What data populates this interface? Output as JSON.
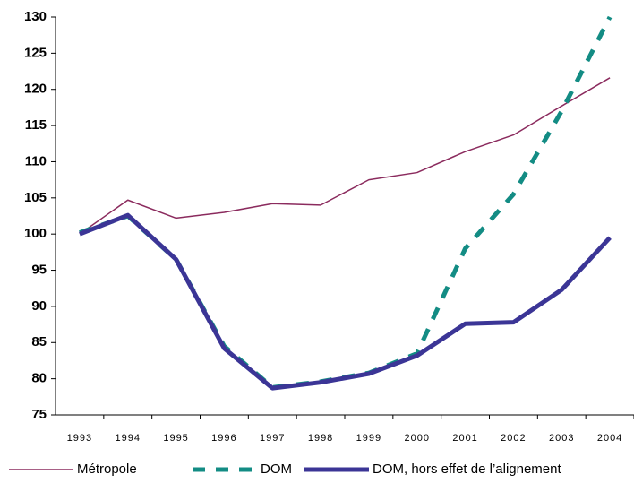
{
  "chart_data": {
    "type": "line",
    "categories": [
      "1993",
      "1994",
      "1995",
      "1996",
      "1997",
      "1998",
      "1999",
      "2000",
      "2001",
      "2002",
      "2003",
      "2004"
    ],
    "series": [
      {
        "name": "Métropole",
        "color": "#8b2b5e",
        "values": [
          100,
          104.7,
          102.2,
          103,
          104.2,
          104,
          107.5,
          108.5,
          111.4,
          113.7,
          117.7,
          121.6
        ]
      },
      {
        "name": "DOM",
        "color": "#138c84",
        "values": [
          100.2,
          102.5,
          96.5,
          84.5,
          78.8,
          79.6,
          80.8,
          83.5,
          98,
          105.5,
          117,
          130
        ]
      },
      {
        "name": "DOM, hors effet de l’alignement",
        "color": "#3b3596",
        "values": [
          100,
          102.6,
          96.5,
          84.2,
          78.7,
          79.5,
          80.7,
          83.2,
          87.6,
          87.8,
          92.3,
          99.5
        ]
      }
    ],
    "ylim": [
      75,
      130
    ],
    "yticks": [
      75,
      80,
      85,
      90,
      95,
      100,
      105,
      110,
      115,
      120,
      125,
      130
    ],
    "grid": false
  }
}
